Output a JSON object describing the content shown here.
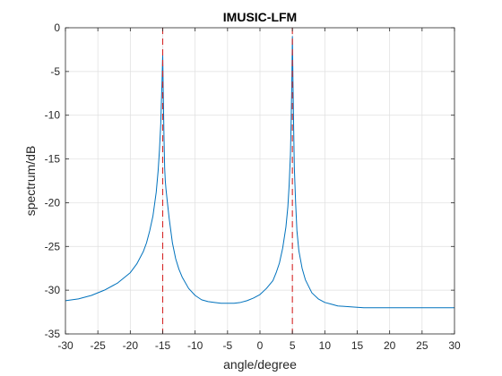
{
  "chart_data": {
    "type": "line",
    "title": "IMUSIC-LFM",
    "xlabel": "angle/degree",
    "ylabel": "spectrum/dB",
    "xlim": [
      -30,
      30
    ],
    "ylim": [
      -35,
      0
    ],
    "grid": true,
    "xticks": [
      -30,
      -25,
      -20,
      -15,
      -10,
      -5,
      0,
      5,
      10,
      15,
      20,
      25,
      30
    ],
    "yticks": [
      0,
      -5,
      -10,
      -15,
      -20,
      -25,
      -30,
      -35
    ],
    "series": [
      {
        "type": "line",
        "color": "#0072bd",
        "x": [
          -30,
          -28,
          -26,
          -24,
          -22,
          -20,
          -19,
          -18,
          -17.5,
          -17,
          -16.5,
          -16,
          -15.7,
          -15.5,
          -15.3,
          -15.2,
          -15.1,
          -15.0,
          -14.9,
          -14.8,
          -14.7,
          -14.6,
          -14.5,
          -14.3,
          -14,
          -13.5,
          -13,
          -12.5,
          -12,
          -11,
          -10,
          -9,
          -8,
          -7,
          -6,
          -5,
          -4,
          -3,
          -2,
          -1,
          0,
          1,
          2,
          2.5,
          3,
          3.5,
          4,
          4.3,
          4.5,
          4.7,
          4.8,
          4.9,
          5.0,
          5.1,
          5.2,
          5.3,
          5.5,
          5.7,
          6,
          6.5,
          7,
          8,
          9,
          10,
          11,
          12,
          14,
          16,
          18,
          20,
          25,
          30
        ],
        "y": [
          -31.2,
          -31.0,
          -30.6,
          -30.0,
          -29.2,
          -28.0,
          -27.0,
          -25.6,
          -24.6,
          -23.2,
          -21.5,
          -18.8,
          -16.3,
          -14.0,
          -11.0,
          -8.5,
          -6.0,
          -3.0,
          -8.0,
          -12.5,
          -16.0,
          -17.5,
          -18.4,
          -19.8,
          -21.8,
          -24.6,
          -26.4,
          -27.6,
          -28.5,
          -29.8,
          -30.6,
          -31.1,
          -31.3,
          -31.4,
          -31.5,
          -31.5,
          -31.5,
          -31.4,
          -31.2,
          -30.9,
          -30.5,
          -29.8,
          -28.9,
          -28.0,
          -26.9,
          -25.2,
          -22.8,
          -20.5,
          -18.0,
          -14.5,
          -11.0,
          -7.0,
          -1.0,
          -6.5,
          -11.5,
          -16.0,
          -20.0,
          -23.2,
          -25.5,
          -27.5,
          -28.8,
          -30.3,
          -31.0,
          -31.4,
          -31.6,
          -31.8,
          -31.9,
          -32.0,
          -32.0,
          -32.0,
          -32.0,
          -32.0
        ]
      },
      {
        "type": "vline",
        "style": "dashed",
        "color": "#d62728",
        "x": -15
      },
      {
        "type": "vline",
        "style": "dashed",
        "color": "#d62728",
        "x": 5
      }
    ]
  }
}
